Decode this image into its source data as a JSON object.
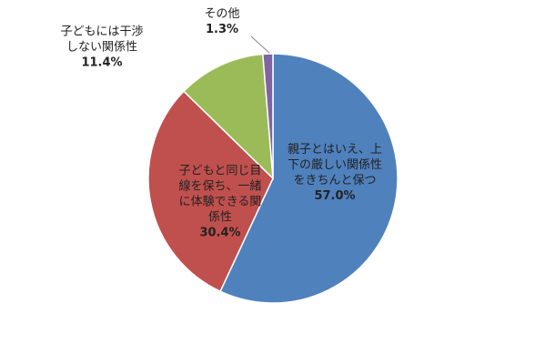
{
  "chart_data": {
    "type": "pie",
    "categories": [
      "親子とはいえ、上下の厳しい関係性をきちんと保つ",
      "子どもと同じ目線を保ち、一緒に体験できる関係性",
      "子どもには干渉しない関係性",
      "その他"
    ],
    "values": [
      57.0,
      30.4,
      11.4,
      1.3
    ],
    "value_labels": [
      "57.0%",
      "30.4%",
      "11.4%",
      "1.3%"
    ],
    "colors": [
      "#4f81bd",
      "#c0504d",
      "#9bbb59",
      "#8064a2"
    ]
  }
}
